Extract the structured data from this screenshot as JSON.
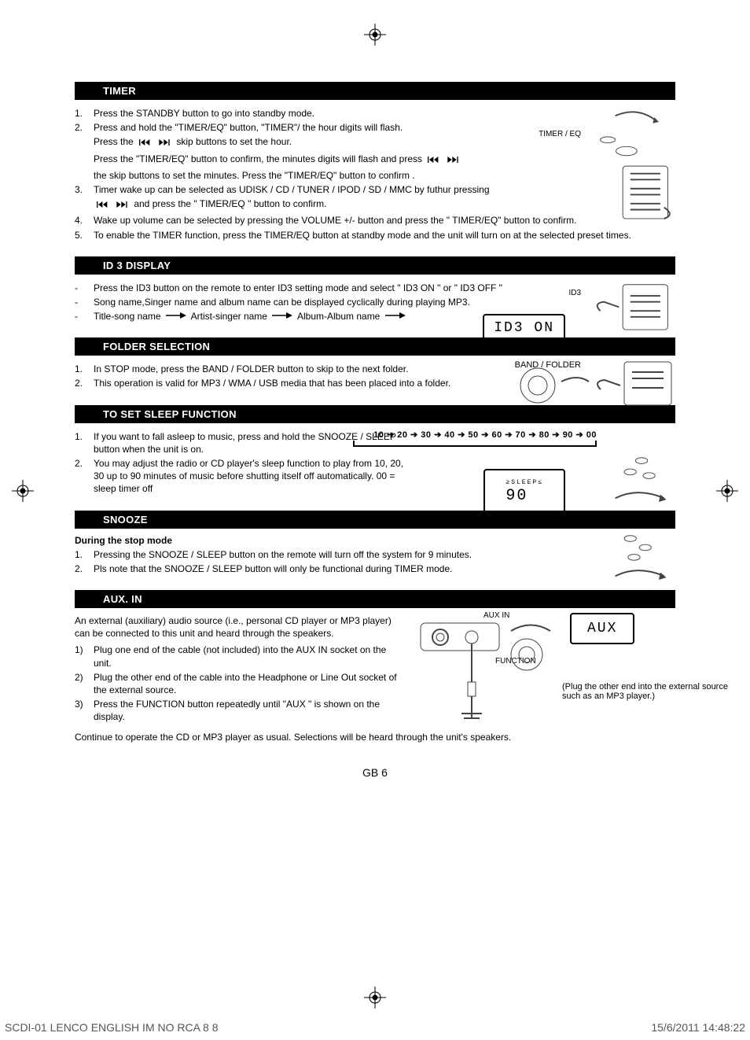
{
  "sections": {
    "timer": {
      "title": "TIMER",
      "sideLabel": "TIMER / EQ",
      "items": [
        {
          "n": "1.",
          "t": "Press the STANDBY button to go into standby mode."
        },
        {
          "n": "2.",
          "t": "Press and hold the \"TIMER/EQ\" button, \"TIMER\"/ the hour digits will flash."
        },
        {
          "n": "",
          "t": "Press the |skip| skip buttons to set the hour."
        },
        {
          "n": "",
          "t": "Press the \"TIMER/EQ\" button to confirm, the minutes digits will flash and press |skip|"
        },
        {
          "n": "",
          "t": "the skip buttons to set the minutes. Press the \"TIMER/EQ\" button to confirm ."
        },
        {
          "n": "3.",
          "t": "Timer wake up can be selected as UDISK / CD / TUNER / IPOD / SD / MMC by futhur pressing"
        },
        {
          "n": "",
          "t": "|skip| and press the \" TIMER/EQ \" button to confirm."
        },
        {
          "n": "4.",
          "t": "Wake up volume can be selected by pressing the VOLUME +/- button and press the \" TIMER/EQ\" button to confirm."
        },
        {
          "n": "5.",
          "t": "To enable the TIMER function, press the TIMER/EQ button at standby mode and the unit will turn on at the selected preset times."
        }
      ]
    },
    "id3": {
      "title": "ID 3 DISPLAY",
      "sideLabel": "ID3",
      "lcdText": "ID3 ON",
      "items": [
        {
          "n": "-",
          "t": "Press the ID3 button on the remote to enter ID3 setting mode and select \" ID3 ON \" or \" ID3 OFF \""
        },
        {
          "n": "-",
          "t": "Song name,Singer name and album name can be displayed cyclically during playing MP3."
        },
        {
          "n": "-",
          "t": "Title-song name |arr| Artist-singer name |arr| Album-Album name |arr|"
        }
      ]
    },
    "folder": {
      "title": "FOLDER SELECTION",
      "sideLabel": "BAND / FOLDER",
      "items": [
        {
          "n": "1.",
          "t": "In STOP mode, press the BAND / FOLDER button to skip to the next folder."
        },
        {
          "n": "2.",
          "t": "This operation is valid for MP3 / WMA / USB media that has been placed into a folder."
        }
      ]
    },
    "sleep": {
      "title": "TO SET SLEEP FUNCTION",
      "sequence": "10 ➔ 20 ➔ 30 ➔ 40 ➔ 50 ➔ 60 ➔ 70 ➔ 80 ➔ 90 ➔ 00",
      "lcdText": "SLEEP 90",
      "items": [
        {
          "n": "1.",
          "t": "If you want to fall asleep to music, press and hold the SNOOZE / SLEEP button when the unit is on."
        },
        {
          "n": "2.",
          "t": "You may adjust the radio or CD player's sleep function to play from 10, 20, 30 up to 90 minutes of music before shutting itself off automatically. 00 = sleep timer off"
        }
      ]
    },
    "snooze": {
      "title": "SNOOZE",
      "subhead": "During the stop mode",
      "items": [
        {
          "n": "1.",
          "t": "Pressing the SNOOZE / SLEEP button on the remote will turn off the system for 9 minutes."
        },
        {
          "n": "2.",
          "t": "Pls note that the SNOOZE / SLEEP button will only be functional during TIMER mode."
        }
      ]
    },
    "aux": {
      "title": "AUX. IN",
      "auxLabel": "AUX IN",
      "funcLabel": "FUNCTION",
      "lcdText": "AUX",
      "plugNote": "(Plug the other end into the external source such as an MP3 player.)",
      "intro": "An external (auxiliary) audio source (i.e., personal CD player or MP3 player) can be connected to this unit and heard through the speakers.",
      "items": [
        {
          "n": "1)",
          "t": "Plug one end of the cable (not included) into the AUX IN socket on the unit."
        },
        {
          "n": "2)",
          "t": "Plug the other end of the cable into the Headphone or Line Out socket of the external source."
        },
        {
          "n": "3)",
          "t": "Press the FUNCTION button repeatedly until \"AUX \" is shown on the display."
        }
      ],
      "continue": "Continue to operate the CD or MP3 player as usual.  Selections will be heard through the unit's speakers."
    }
  },
  "pageNum": "GB 6",
  "footer": {
    "left": "SCDI-01 LENCO ENGLISH IM NO RCA 8   8",
    "right": "15/6/2011   14:48:22"
  }
}
